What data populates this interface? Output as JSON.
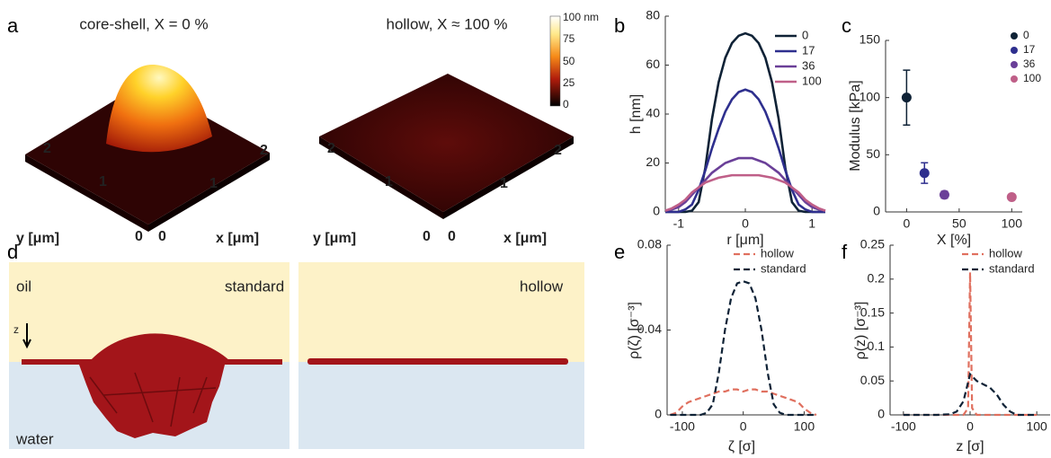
{
  "figure": {
    "panel_labels": [
      "a",
      "b",
      "c",
      "d",
      "e",
      "f"
    ],
    "panel_a": {
      "titles": [
        "core-shell, X = 0 %",
        "hollow, X ≈ 100 %"
      ],
      "colorbar_labels": [
        "100 nm",
        "75",
        "50",
        "25",
        "0"
      ],
      "y_axis_label": "y [μm]",
      "x_axis_label": "x [μm]",
      "y_tick_labels": [
        "2",
        "1",
        "0"
      ],
      "x_tick_labels": [
        "0",
        "1",
        "2"
      ]
    },
    "panel_d": {
      "oil": "oil",
      "standard": "standard",
      "hollow": "hollow",
      "z": "z",
      "water": "water"
    }
  },
  "chart_data": [
    {
      "type": "line",
      "xlabel": "r [μm]",
      "ylabel": "h [nm]",
      "x": [
        -1.2,
        -1.1,
        -1.0,
        -0.9,
        -0.8,
        -0.7,
        -0.6,
        -0.5,
        -0.4,
        -0.3,
        -0.2,
        -0.1,
        0,
        0.1,
        0.2,
        0.3,
        0.4,
        0.5,
        0.6,
        0.7,
        0.8,
        0.9,
        1.0,
        1.1,
        1.2
      ],
      "xlim": [
        -1.2,
        1.2
      ],
      "xticks": [
        -1,
        0,
        1
      ],
      "ylim": [
        0,
        80
      ],
      "yticks": [
        0,
        20,
        40,
        60,
        80
      ],
      "series": [
        {
          "name": "0",
          "color": "#0f2236",
          "values": [
            0,
            0,
            0,
            0,
            0.5,
            4,
            18,
            38,
            53,
            63,
            69,
            72,
            73,
            72,
            69,
            63,
            53,
            38,
            18,
            4,
            0.5,
            0,
            0,
            0,
            0
          ]
        },
        {
          "name": "17",
          "color": "#2e2f8e",
          "values": [
            0,
            0,
            0,
            1,
            3,
            9,
            17,
            26,
            34,
            41,
            46,
            49,
            50,
            49,
            46,
            41,
            34,
            26,
            17,
            9,
            3,
            1,
            0,
            0,
            0
          ]
        },
        {
          "name": "36",
          "color": "#6a3f98",
          "values": [
            0.5,
            1,
            2,
            4,
            7,
            10,
            13,
            16,
            18,
            20,
            21,
            22,
            22,
            22,
            21,
            20,
            18,
            16,
            13,
            10,
            7,
            4,
            2,
            1,
            0.5
          ]
        },
        {
          "name": "100",
          "color": "#bf5f88",
          "values": [
            0.5,
            1.5,
            3,
            5,
            8,
            10,
            12,
            13,
            14,
            14.5,
            15,
            15,
            15,
            15,
            15,
            14.5,
            14,
            13,
            12,
            10,
            8,
            5,
            3,
            1.5,
            0.5
          ]
        }
      ]
    },
    {
      "type": "scatter",
      "xlabel": "X [%]",
      "ylabel": "Modulus [kPa]",
      "xlim": [
        -20,
        110
      ],
      "xticks": [
        0,
        50,
        100
      ],
      "ylim": [
        0,
        150
      ],
      "yticks": [
        0,
        50,
        100,
        150
      ],
      "series": [
        {
          "name": "0",
          "color": "#0f2236",
          "x": [
            0
          ],
          "values": [
            100
          ],
          "errors": [
            24
          ]
        },
        {
          "name": "17",
          "color": "#2e2f8e",
          "x": [
            17
          ],
          "values": [
            34
          ],
          "errors": [
            9
          ]
        },
        {
          "name": "36",
          "color": "#6a3f98",
          "x": [
            36
          ],
          "values": [
            15
          ],
          "errors": [
            3
          ]
        },
        {
          "name": "100",
          "color": "#bf5f88",
          "x": [
            100
          ],
          "values": [
            13
          ],
          "errors": [
            2
          ]
        }
      ]
    },
    {
      "type": "line",
      "line_style": "dashed",
      "xlabel": "ζ [σ]",
      "ylabel": "ρ(ζ) [σ⁻³]",
      "x": [
        -120,
        -110,
        -100,
        -90,
        -80,
        -70,
        -60,
        -50,
        -40,
        -30,
        -20,
        -10,
        0,
        10,
        20,
        30,
        40,
        50,
        60,
        70,
        80,
        90,
        100,
        110,
        120
      ],
      "xlim": [
        -125,
        120
      ],
      "xticks": [
        -100,
        0,
        100
      ],
      "ylim": [
        0,
        0.08
      ],
      "yticks": [
        0,
        0.04,
        0.08
      ],
      "series": [
        {
          "name": "hollow",
          "color": "#e0705f",
          "values": [
            0,
            0.001,
            0.004,
            0.006,
            0.007,
            0.008,
            0.009,
            0.01,
            0.011,
            0.011,
            0.012,
            0.012,
            0.011,
            0.012,
            0.012,
            0.011,
            0.011,
            0.01,
            0.009,
            0.008,
            0.007,
            0.006,
            0.003,
            0.001,
            0
          ]
        },
        {
          "name": "standard",
          "color": "#0f2236",
          "values": [
            0,
            0,
            0,
            0,
            0,
            0,
            0.001,
            0.005,
            0.02,
            0.04,
            0.055,
            0.062,
            0.063,
            0.062,
            0.055,
            0.04,
            0.02,
            0.005,
            0.001,
            0,
            0,
            0,
            0,
            0,
            0
          ]
        }
      ]
    },
    {
      "type": "line",
      "line_style": "dashed",
      "xlabel": "z [σ]",
      "ylabel": "ρ(z) [σ⁻³]",
      "xlim": [
        -120,
        120
      ],
      "xticks": [
        -100,
        0,
        100
      ],
      "ylim": [
        0,
        0.25
      ],
      "yticks": [
        0,
        0.05,
        0.1,
        0.15,
        0.2,
        0.25
      ],
      "series": [
        {
          "name": "hollow",
          "color": "#e0705f",
          "x": [
            -100,
            -10,
            -3,
            0,
            3,
            10,
            100
          ],
          "values": [
            0,
            0,
            0.01,
            0.21,
            0.01,
            0,
            0
          ]
        },
        {
          "name": "standard",
          "color": "#0f2236",
          "x": [
            -100,
            -50,
            -30,
            -20,
            -10,
            -5,
            0,
            5,
            10,
            20,
            30,
            40,
            50,
            60,
            70,
            100
          ],
          "values": [
            0,
            0,
            0.001,
            0.005,
            0.02,
            0.04,
            0.06,
            0.055,
            0.05,
            0.045,
            0.04,
            0.03,
            0.015,
            0.005,
            0,
            0
          ]
        }
      ]
    }
  ]
}
